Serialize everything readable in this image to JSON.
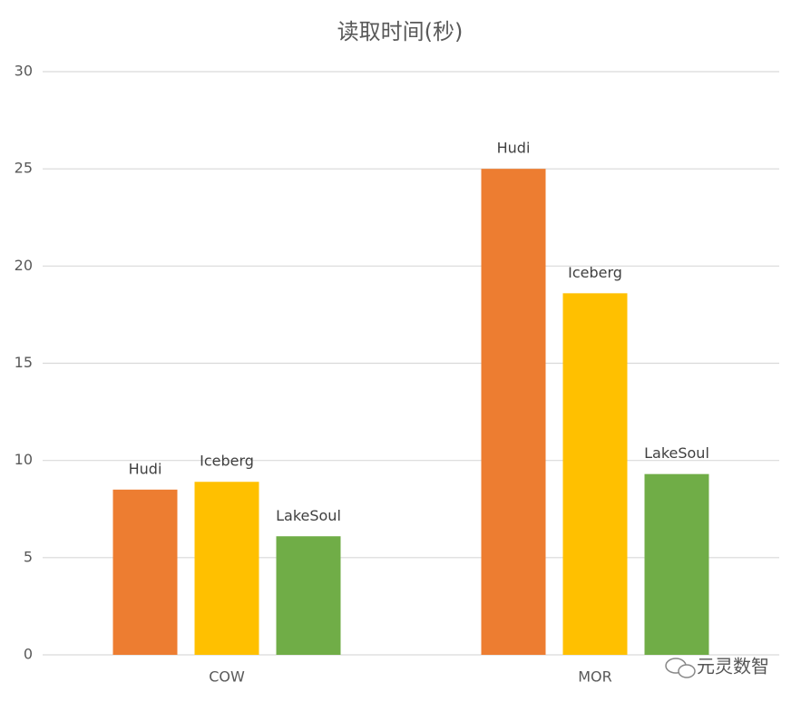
{
  "chart_data": {
    "type": "bar",
    "title": "读取时间(秒)",
    "categories": [
      "COW",
      "MOR"
    ],
    "series": [
      {
        "name": "Hudi",
        "color": "#ED7D31",
        "values": [
          8.5,
          25
        ]
      },
      {
        "name": "Iceberg",
        "color": "#FFC000",
        "values": [
          8.9,
          18.6
        ]
      },
      {
        "name": "LakeSoul",
        "color": "#70AD47",
        "values": [
          6.1,
          9.3
        ]
      }
    ],
    "ylim": [
      0,
      30
    ],
    "yticks": [
      0,
      5,
      10,
      15,
      20,
      25,
      30
    ],
    "grid": true
  },
  "watermark": "元灵数智"
}
